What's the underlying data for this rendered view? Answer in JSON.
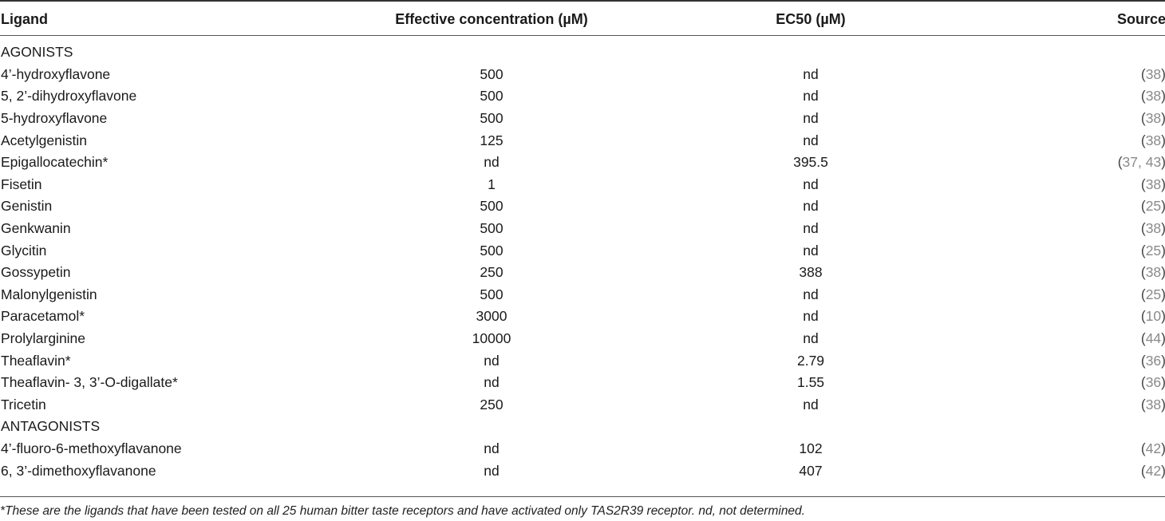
{
  "table": {
    "headers": {
      "ligand": "Ligand",
      "effective_concentration": "Effective concentration (µM)",
      "ec50": "EC50 (µM)",
      "source": "Source"
    },
    "sections": [
      {
        "title": "AGONISTS",
        "rows": [
          {
            "ligand": "4’-hydroxyflavone",
            "effective": "500",
            "ec50": "nd",
            "source_open": "(",
            "source_refs": "38",
            "source_close": ")"
          },
          {
            "ligand": "5, 2’-dihydroxyflavone",
            "effective": "500",
            "ec50": "nd",
            "source_open": "(",
            "source_refs": "38",
            "source_close": ")"
          },
          {
            "ligand": "5-hydroxyflavone",
            "effective": "500",
            "ec50": "nd",
            "source_open": "(",
            "source_refs": "38",
            "source_close": ")"
          },
          {
            "ligand": "Acetylgenistin",
            "effective": "125",
            "ec50": "nd",
            "source_open": "(",
            "source_refs": "38",
            "source_close": ")"
          },
          {
            "ligand": "Epigallocatechin*",
            "effective": "nd",
            "ec50": "395.5",
            "source_open": "(",
            "source_refs": "37, 43",
            "source_close": ")"
          },
          {
            "ligand": "Fisetin",
            "effective": "1",
            "ec50": "nd",
            "source_open": "(",
            "source_refs": "38",
            "source_close": ")"
          },
          {
            "ligand": "Genistin",
            "effective": "500",
            "ec50": "nd",
            "source_open": "(",
            "source_refs": "25",
            "source_close": ")"
          },
          {
            "ligand": "Genkwanin",
            "effective": "500",
            "ec50": "nd",
            "source_open": "(",
            "source_refs": "38",
            "source_close": ")"
          },
          {
            "ligand": "Glycitin",
            "effective": "500",
            "ec50": "nd",
            "source_open": "(",
            "source_refs": "25",
            "source_close": ")"
          },
          {
            "ligand": "Gossypetin",
            "effective": "250",
            "ec50": "388",
            "source_open": "(",
            "source_refs": "38",
            "source_close": ")"
          },
          {
            "ligand": "Malonylgenistin",
            "effective": "500",
            "ec50": "nd",
            "source_open": "(",
            "source_refs": "25",
            "source_close": ")"
          },
          {
            "ligand": "Paracetamol*",
            "effective": "3000",
            "ec50": "nd",
            "source_open": "(",
            "source_refs": "10",
            "source_close": ")"
          },
          {
            "ligand": "Prolylarginine",
            "effective": "10000",
            "ec50": "nd",
            "source_open": "(",
            "source_refs": "44",
            "source_close": ")"
          },
          {
            "ligand": "Theaflavin*",
            "effective": "nd",
            "ec50": "2.79",
            "source_open": "(",
            "source_refs": "36",
            "source_close": ")"
          },
          {
            "ligand": "Theaflavin- 3, 3’-O-digallate*",
            "effective": "nd",
            "ec50": "1.55",
            "source_open": "(",
            "source_refs": "36",
            "source_close": ")"
          },
          {
            "ligand": "Tricetin",
            "effective": "250",
            "ec50": "nd",
            "source_open": "(",
            "source_refs": "38",
            "source_close": ")"
          }
        ]
      },
      {
        "title": "ANTAGONISTS",
        "rows": [
          {
            "ligand": "4’-fluoro-6-methoxyflavanone",
            "effective": "nd",
            "ec50": "102",
            "source_open": "(",
            "source_refs": "42",
            "source_close": ")"
          },
          {
            "ligand": "6, 3’-dimethoxyflavanone",
            "effective": "nd",
            "ec50": "407",
            "source_open": "(",
            "source_refs": "42",
            "source_close": ")"
          }
        ]
      }
    ]
  },
  "footnote": "*These are the ligands that have been tested on all 25 human bitter taste receptors and have activated only TAS2R39 receptor. nd, not determined."
}
